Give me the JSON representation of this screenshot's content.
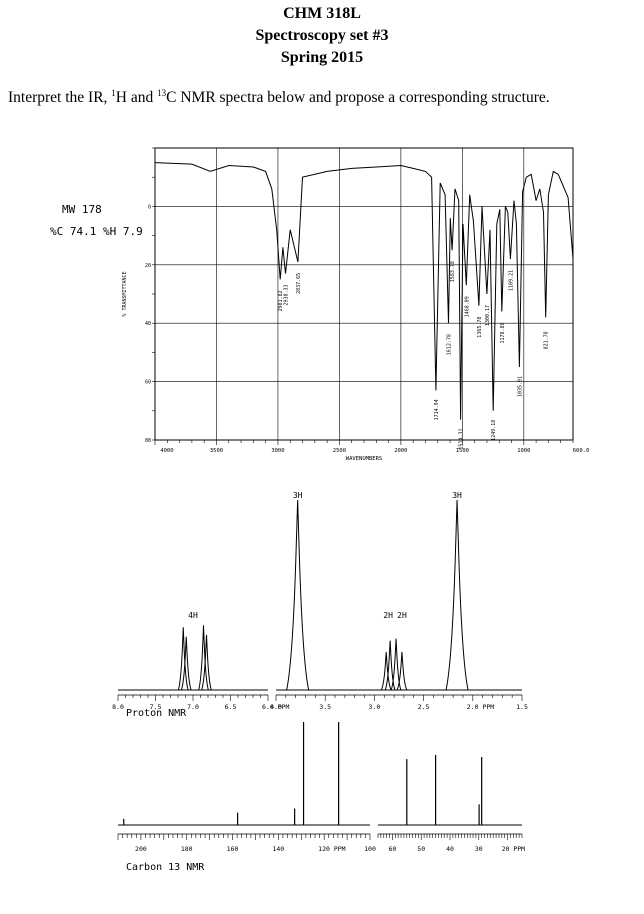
{
  "header": {
    "course": "CHM 318L",
    "set": "Spectroscopy set #3",
    "term": "Spring 2015",
    "instructions_pre": "Interpret the IR, ",
    "sup1": "1",
    "instructions_mid": "H and ",
    "sup13": "13",
    "instructions_post": "C NMR spectra below and propose a corresponding structure."
  },
  "sample": {
    "mw": "MW 178",
    "composition": "%C 74.1 %H 7.9"
  },
  "ir": {
    "ylabel": "% TRANSMITTANCE",
    "xlabel": "WAVENUMBERS",
    "y_ticks": [
      "80",
      "60",
      "40",
      "20",
      "0"
    ],
    "x_ticks": [
      "4000",
      "3500",
      "3000",
      "2500",
      "2000",
      "1500",
      "1000",
      "600.0"
    ],
    "peak_labels": [
      "2981.82",
      "2938.33",
      "2837.65",
      "1714.94",
      "1612.78",
      "1583.78",
      "1514.31",
      "1468.09",
      "1365.78",
      "1300.17",
      "1249.18",
      "1178.88",
      "1109.21",
      "1035.91",
      "821.78"
    ]
  },
  "proton": {
    "title": "Proton NMR",
    "x_ticks": [
      "8.0",
      "7.5",
      "7.0",
      "6.5",
      "6.0 PPM",
      "4.0",
      "3.5",
      "3.0",
      "2.5",
      "2.0 PPM",
      "1.5"
    ],
    "integrals": [
      "4H",
      "3H",
      "2H",
      "2H",
      "3H"
    ]
  },
  "carbon": {
    "title": "Carbon 13 NMR",
    "x_ticks": [
      "200",
      "180",
      "160",
      "140",
      "120 PPM",
      "100",
      "60",
      "50",
      "40",
      "30",
      "20 PPM"
    ]
  },
  "chart_data": [
    {
      "type": "line",
      "title": "",
      "xlabel": "WAVENUMBERS",
      "ylabel": "% TRANSMITTANCE",
      "x_reversed": true,
      "xlim": [
        4000,
        600
      ],
      "ylim": [
        0,
        100
      ],
      "x_ticks": [
        4000,
        3500,
        3000,
        2500,
        2000,
        1500,
        1000,
        600
      ],
      "y_ticks": [
        0,
        20,
        40,
        60,
        80
      ],
      "series": [
        {
          "x": [
            4000,
            3700,
            3550,
            3400,
            3200,
            3100,
            3050,
            3010,
            2981.82,
            2960,
            2938.33,
            2900,
            2837.65,
            2800,
            2600,
            2400,
            2200,
            2000,
            1900,
            1800,
            1750,
            1714.94,
            1680,
            1640,
            1612.78,
            1598,
            1583.78,
            1560,
            1530,
            1514.31,
            1495,
            1468.09,
            1440,
            1410,
            1365.78,
            1340,
            1300.17,
            1275,
            1249.18,
            1220,
            1195,
            1178.88,
            1150,
            1130,
            1109.21,
            1080,
            1060,
            1035.91,
            1010,
            980,
            940,
            900,
            870,
            840,
            821.78,
            800,
            760,
            720,
            680,
            640,
            600
          ],
          "y": [
            95,
            94.5,
            92,
            94,
            93.5,
            92,
            86,
            72,
            55,
            66,
            57,
            72,
            61,
            90,
            92,
            93,
            93.5,
            94,
            93,
            92,
            90,
            17,
            88,
            84,
            40,
            76,
            65,
            86,
            82,
            7,
            74,
            53,
            84,
            75,
            46,
            80,
            50,
            72,
            10,
            74,
            79,
            44,
            80,
            78,
            62,
            82,
            74,
            25,
            85,
            90,
            91,
            82,
            86,
            78,
            42,
            84,
            92,
            91,
            87,
            83,
            62
          ]
        }
      ],
      "peak_labels": [
        2981.82,
        2938.33,
        2837.65,
        1714.94,
        1612.78,
        1583.78,
        1514.31,
        1468.09,
        1365.78,
        1300.17,
        1249.18,
        1178.88,
        1109.21,
        1035.91,
        821.78
      ]
    },
    {
      "type": "line",
      "title": "Proton NMR",
      "xlabel": "PPM",
      "x_reversed": true,
      "segments": [
        [
          8.0,
          6.0
        ],
        [
          4.0,
          1.5
        ]
      ],
      "x_ticks": [
        8.0,
        7.5,
        7.0,
        6.5,
        6.0,
        4.0,
        3.5,
        3.0,
        2.5,
        2.0,
        1.5
      ],
      "peaks": [
        {
          "ppm": 7.13,
          "height": 0.33
        },
        {
          "ppm": 7.09,
          "height": 0.28
        },
        {
          "ppm": 6.86,
          "height": 0.34
        },
        {
          "ppm": 6.82,
          "height": 0.29
        },
        {
          "ppm": 3.78,
          "height": 1.0
        },
        {
          "ppm": 2.88,
          "height": 0.2
        },
        {
          "ppm": 2.84,
          "height": 0.26
        },
        {
          "ppm": 2.78,
          "height": 0.27
        },
        {
          "ppm": 2.72,
          "height": 0.2
        },
        {
          "ppm": 2.16,
          "height": 1.0
        }
      ],
      "integrals": [
        {
          "ppm": 7.0,
          "label": "4H"
        },
        {
          "ppm": 3.78,
          "label": "3H"
        },
        {
          "ppm": 2.86,
          "label": "2H"
        },
        {
          "ppm": 2.72,
          "label": "2H"
        },
        {
          "ppm": 2.16,
          "label": "3H"
        }
      ]
    },
    {
      "type": "bar",
      "title": "Carbon 13 NMR",
      "xlabel": "PPM",
      "x_reversed": true,
      "segments": [
        [
          210,
          100
        ],
        [
          65,
          15
        ]
      ],
      "x_ticks": [
        200,
        180,
        160,
        140,
        120,
        100,
        60,
        50,
        40,
        30,
        20
      ],
      "peaks": [
        {
          "ppm": 207.5,
          "height": 0.06
        },
        {
          "ppm": 157.8,
          "height": 0.12
        },
        {
          "ppm": 132.9,
          "height": 0.16
        },
        {
          "ppm": 129.0,
          "height": 1.0
        },
        {
          "ppm": 113.7,
          "height": 1.0
        },
        {
          "ppm": 55.0,
          "height": 0.64
        },
        {
          "ppm": 45.0,
          "height": 0.68
        },
        {
          "ppm": 29.9,
          "height": 0.2
        },
        {
          "ppm": 29.0,
          "height": 0.66
        }
      ]
    }
  ]
}
